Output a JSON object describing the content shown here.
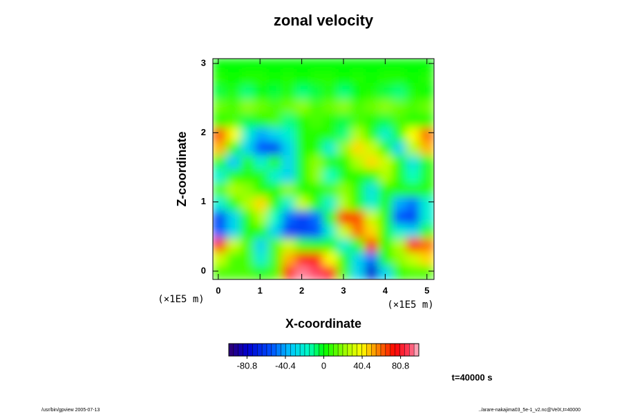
{
  "chart_data": {
    "type": "heatmap",
    "title": "zonal velocity",
    "xlabel": "X-coordinate",
    "ylabel": "Z-coordinate",
    "xunits": "(×1E5 m)",
    "yunits": "(×1E5 m)",
    "annotation": "t=40000 s",
    "footer_left": "/usr/bin/gpview 2005-07-13",
    "footer_right": "../arare-nakajima03_5e-1_v2.nc@VelX,t=40000",
    "xlim": [
      -0.13,
      5.17
    ],
    "ylim": [
      -0.12,
      3.07
    ],
    "xticks": [
      0,
      1,
      2,
      3,
      4,
      5
    ],
    "yticks": [
      0,
      1,
      2,
      3
    ],
    "x": [
      0.04,
      0.37,
      0.7,
      1.03,
      1.36,
      1.69,
      2.02,
      2.35,
      2.69,
      3.02,
      3.35,
      3.68,
      4.01,
      4.34,
      4.67,
      5.0
    ],
    "y": [
      -0.02,
      0.18,
      0.38,
      0.58,
      0.78,
      0.98,
      1.18,
      1.38,
      1.58,
      1.78,
      1.98,
      2.18,
      2.38,
      2.58,
      2.78,
      2.98
    ],
    "values": [
      [
        10,
        10,
        10,
        5,
        10,
        70,
        95,
        90,
        80,
        10,
        -30,
        -80,
        -30,
        5,
        10,
        10
      ],
      [
        30,
        10,
        10,
        -20,
        10,
        50,
        70,
        70,
        40,
        5,
        -30,
        -50,
        5,
        20,
        30,
        45
      ],
      [
        70,
        30,
        10,
        -30,
        10,
        30,
        10,
        5,
        5,
        -20,
        5,
        70,
        5,
        25,
        70,
        60
      ],
      [
        -55,
        -30,
        5,
        5,
        -30,
        -60,
        -60,
        -55,
        -20,
        30,
        60,
        45,
        5,
        -20,
        -30,
        5
      ],
      [
        -60,
        -30,
        5,
        25,
        -15,
        -50,
        -60,
        -50,
        5,
        70,
        65,
        30,
        5,
        -55,
        -60,
        -20
      ],
      [
        -20,
        5,
        25,
        45,
        5,
        -20,
        30,
        5,
        -20,
        25,
        5,
        -20,
        5,
        -40,
        -50,
        -20
      ],
      [
        10,
        25,
        20,
        5,
        5,
        20,
        5,
        5,
        10,
        20,
        5,
        -25,
        5,
        5,
        5,
        5
      ],
      [
        -20,
        5,
        5,
        5,
        -20,
        -30,
        5,
        20,
        -15,
        5,
        5,
        5,
        25,
        5,
        -15,
        5
      ],
      [
        5,
        -35,
        5,
        -20,
        5,
        -30,
        5,
        20,
        5,
        5,
        25,
        45,
        30,
        5,
        -25,
        5
      ],
      [
        50,
        5,
        -30,
        -55,
        -60,
        -30,
        5,
        5,
        -20,
        20,
        45,
        30,
        5,
        -30,
        25,
        50
      ],
      [
        65,
        40,
        -20,
        -40,
        -30,
        -20,
        5,
        5,
        5,
        -10,
        25,
        5,
        -20,
        5,
        40,
        60
      ],
      [
        5,
        10,
        -5,
        5,
        10,
        -10,
        5,
        10,
        5,
        -5,
        10,
        5,
        -5,
        10,
        5,
        5
      ],
      [
        15,
        10,
        20,
        15,
        10,
        15,
        20,
        10,
        15,
        20,
        10,
        15,
        20,
        15,
        10,
        15
      ],
      [
        -5,
        5,
        -10,
        0,
        -5,
        5,
        -10,
        -5,
        5,
        -10,
        0,
        5,
        -5,
        -10,
        5,
        0
      ],
      [
        5,
        0,
        5,
        5,
        0,
        5,
        0,
        5,
        5,
        0,
        5,
        0,
        5,
        5,
        0,
        5
      ],
      [
        0,
        0,
        0,
        0,
        0,
        0,
        0,
        0,
        0,
        0,
        0,
        0,
        0,
        0,
        0,
        0
      ]
    ],
    "clim": [
      -100,
      100
    ],
    "cticks": [
      -80.8,
      -40.4,
      0,
      40.4,
      80.8
    ],
    "colormap": [
      [
        -100,
        "#300070"
      ],
      [
        -80,
        "#0000d0"
      ],
      [
        -55,
        "#0050ff"
      ],
      [
        -35,
        "#00c8ff"
      ],
      [
        -15,
        "#00ffc0"
      ],
      [
        0,
        "#00ff00"
      ],
      [
        25,
        "#b0ff00"
      ],
      [
        40,
        "#ffff00"
      ],
      [
        55,
        "#ff9000"
      ],
      [
        75,
        "#ff0000"
      ],
      [
        90,
        "#ff4060"
      ],
      [
        100,
        "#ffc0d0"
      ]
    ]
  }
}
